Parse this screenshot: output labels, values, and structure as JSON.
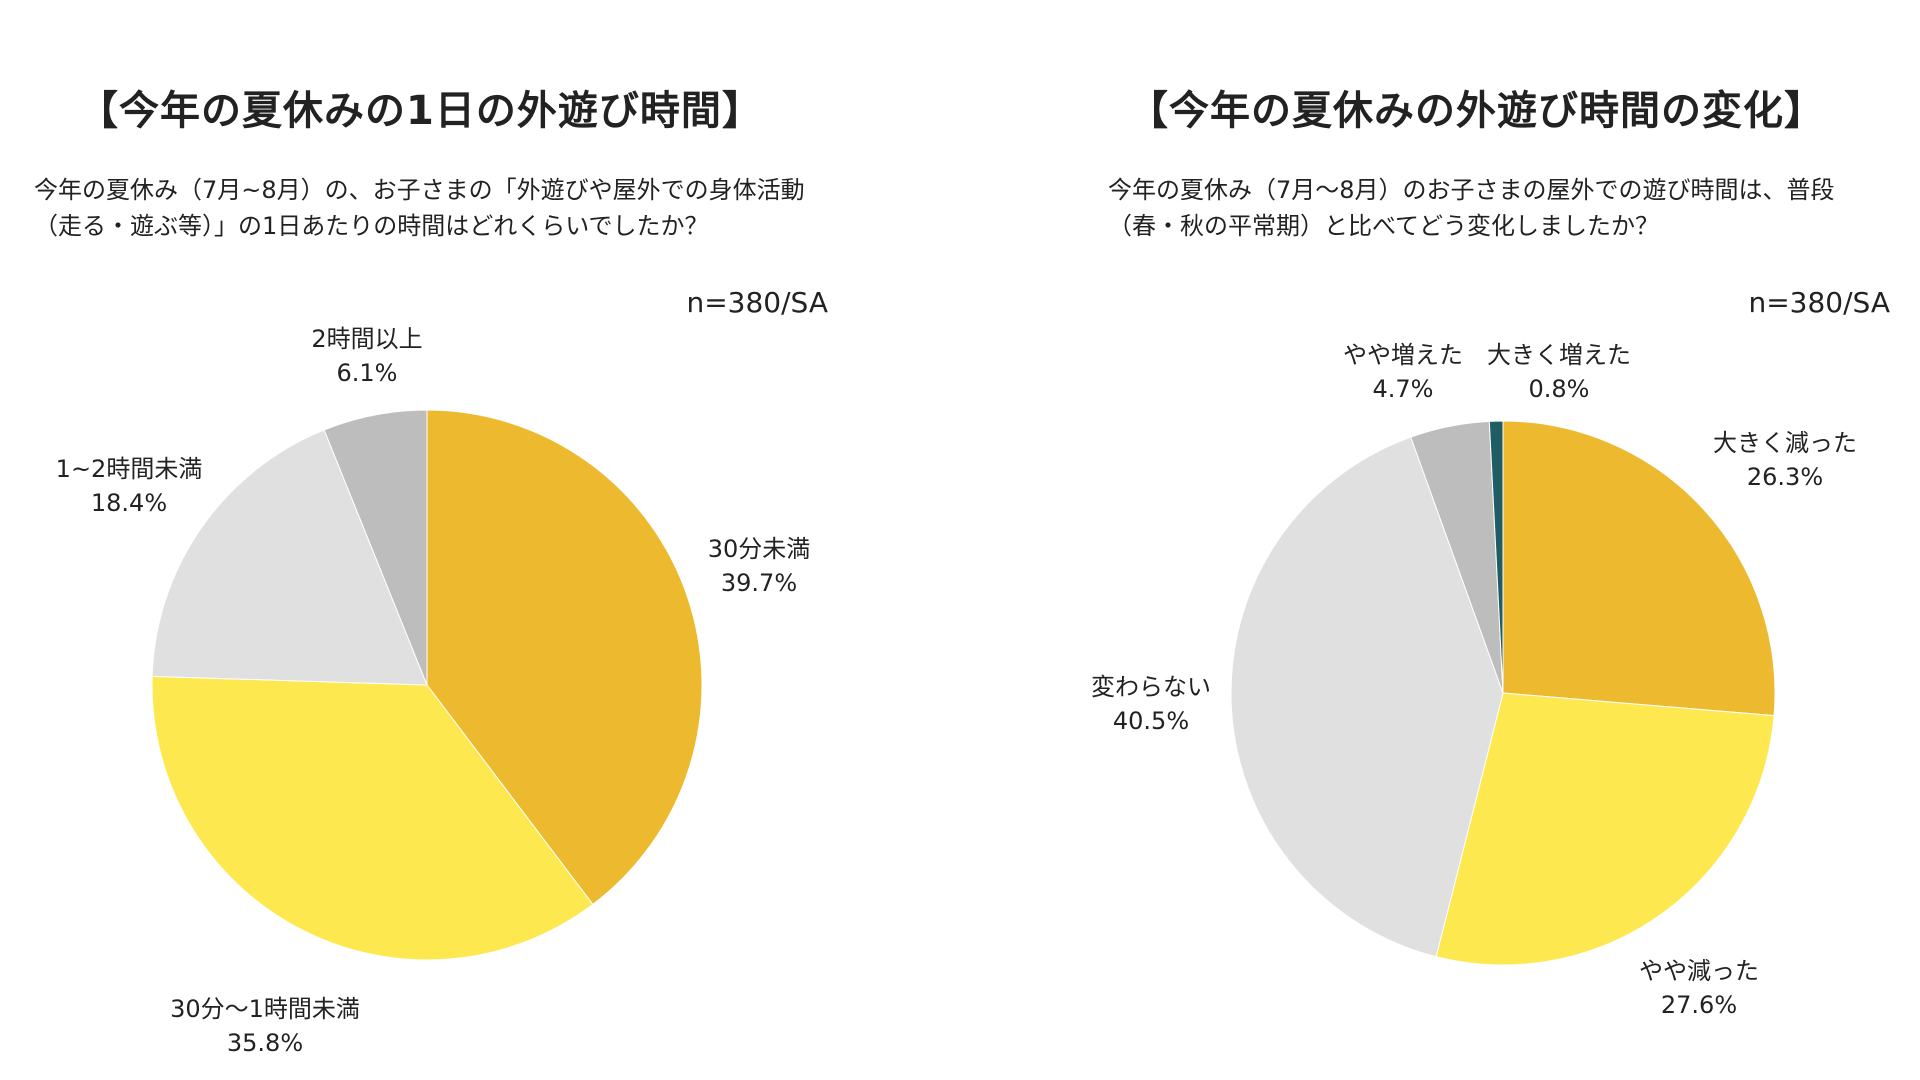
{
  "chart_data": [
    {
      "type": "pie",
      "title": "【今年の夏休みの1日の外遊び時間】",
      "question": "今年の夏休み（7月~8月）の、お子さまの「外遊びや屋外での身体活動（走る・遊ぶ等）」の1日あたりの時間はどれくらいでしたか？",
      "sample": "n=380/SA",
      "start_angle_deg": 0,
      "direction": "clockwise",
      "categories": [
        "30分未満",
        "30分〜1時間未満",
        "1~2時間未満",
        "2時間以上"
      ],
      "values": [
        39.7,
        35.8,
        18.4,
        6.1
      ],
      "value_labels": [
        "39.7%",
        "35.8%",
        "18.4%",
        "6.1%"
      ],
      "colors": [
        "#EDB92E",
        "#FDE94F",
        "#E0E0E0",
        "#BDBDBD"
      ]
    },
    {
      "type": "pie",
      "title": "【今年の夏休みの外遊び時間の変化】",
      "question": "今年の夏休み（7月〜8月）のお子さまの屋外での遊び時間は、普段（春・秋の平常期）と比べてどう変化しましたか？",
      "sample": "n=380/SA",
      "start_angle_deg": 0,
      "direction": "clockwise",
      "categories": [
        "大きく減った",
        "やや減った",
        "変わらない",
        "やや増えた",
        "大きく増えた"
      ],
      "values": [
        26.3,
        27.6,
        40.5,
        4.7,
        0.8
      ],
      "value_labels": [
        "26.3%",
        "27.6%",
        "40.5%",
        "4.7%",
        "0.8%"
      ],
      "colors": [
        "#EDB92E",
        "#FDE94F",
        "#E0E0E0",
        "#BDBDBD",
        "#1F5C63"
      ]
    }
  ]
}
